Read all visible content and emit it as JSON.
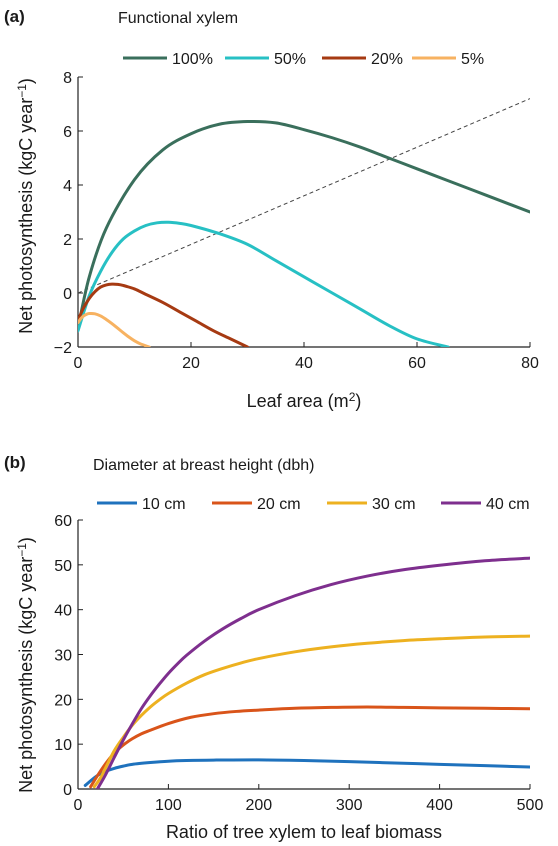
{
  "chart_data": [
    {
      "type": "line",
      "panel": "(a)",
      "legend_title": "Functional xylem",
      "legend_position": "top",
      "xlabel": "Leaf area (m²)",
      "ylabel": "Net photosynthesis (kgC year⁻¹)",
      "xlim": [
        0,
        80
      ],
      "ylim": [
        -2,
        8
      ],
      "xticks": [
        0,
        20,
        40,
        60,
        80
      ],
      "yticks": [
        -2,
        0,
        2,
        4,
        6,
        8
      ],
      "grid": false,
      "series": [
        {
          "name": "100%",
          "color": "#3a6f5c",
          "x": [
            0,
            2,
            5,
            10,
            15,
            20,
            25,
            30,
            35,
            40,
            45,
            50,
            55,
            60,
            65,
            70,
            75,
            80
          ],
          "y": [
            -1.3,
            0.6,
            2.4,
            4.2,
            5.3,
            5.9,
            6.25,
            6.35,
            6.3,
            6.05,
            5.75,
            5.4,
            5.0,
            4.6,
            4.2,
            3.8,
            3.4,
            3.0
          ]
        },
        {
          "name": "50%",
          "color": "#27c0c4",
          "x": [
            0,
            2,
            4,
            6,
            8,
            10,
            12,
            14,
            16,
            18,
            20,
            25,
            30,
            35,
            40,
            45,
            50,
            55,
            60,
            65.5
          ],
          "y": [
            -1.4,
            -0.1,
            0.8,
            1.5,
            2.0,
            2.3,
            2.5,
            2.6,
            2.62,
            2.58,
            2.5,
            2.2,
            1.8,
            1.2,
            0.6,
            0.0,
            -0.6,
            -1.2,
            -1.7,
            -2.0
          ]
        },
        {
          "name": "20%",
          "color": "#a63a12",
          "x": [
            0,
            1,
            2,
            3,
            4,
            5,
            6,
            7,
            8,
            10,
            12,
            15,
            18,
            21,
            24,
            27,
            30
          ],
          "y": [
            -1.0,
            -0.55,
            -0.2,
            0.05,
            0.22,
            0.3,
            0.33,
            0.32,
            0.28,
            0.15,
            -0.05,
            -0.35,
            -0.7,
            -1.05,
            -1.4,
            -1.7,
            -2.0
          ]
        },
        {
          "name": "5%",
          "color": "#f7b261",
          "x": [
            0,
            0.5,
            1,
            1.5,
            2,
            3,
            4,
            5,
            6,
            7,
            8,
            9,
            10,
            11,
            12.6
          ],
          "y": [
            -1.1,
            -0.95,
            -0.85,
            -0.79,
            -0.76,
            -0.77,
            -0.85,
            -0.98,
            -1.13,
            -1.3,
            -1.47,
            -1.63,
            -1.77,
            -1.88,
            -2.0
          ]
        }
      ],
      "reference_line": {
        "style": "dashed",
        "color": "#444444",
        "x": [
          0,
          80
        ],
        "y": [
          0,
          7.2
        ]
      }
    },
    {
      "type": "line",
      "panel": "(b)",
      "legend_title": "Diameter at breast height (dbh)",
      "legend_position": "top",
      "xlabel": "Ratio of tree xylem to leaf biomass",
      "ylabel": "Net photosynthesis (kgC year⁻¹)",
      "xlim": [
        0,
        500
      ],
      "ylim": [
        0,
        60
      ],
      "xticks": [
        0,
        100,
        200,
        300,
        400,
        500
      ],
      "yticks": [
        0,
        10,
        20,
        30,
        40,
        50,
        60
      ],
      "grid": false,
      "series": [
        {
          "name": "10 cm",
          "color": "#1f72bd",
          "x": [
            8,
            20,
            30,
            40,
            50,
            60,
            80,
            100,
            120,
            150,
            200,
            250,
            300,
            350,
            400,
            450,
            500
          ],
          "y": [
            0.8,
            2.8,
            3.9,
            4.6,
            5.1,
            5.5,
            5.9,
            6.2,
            6.35,
            6.45,
            6.5,
            6.35,
            6.1,
            5.8,
            5.5,
            5.2,
            4.9
          ]
        },
        {
          "name": "20 cm",
          "color": "#d9541a",
          "x": [
            14,
            20,
            30,
            40,
            50,
            60,
            70,
            80,
            100,
            125,
            150,
            175,
            200,
            240,
            280,
            320,
            360,
            400,
            450,
            500
          ],
          "y": [
            0.5,
            2.5,
            5.5,
            8.0,
            9.8,
            11.2,
            12.3,
            13.1,
            14.6,
            16.0,
            16.8,
            17.3,
            17.6,
            18.0,
            18.2,
            18.3,
            18.2,
            18.1,
            18.0,
            17.9
          ]
        },
        {
          "name": "30 cm",
          "color": "#edb120",
          "x": [
            18,
            25,
            30,
            40,
            50,
            60,
            70,
            80,
            90,
            100,
            120,
            140,
            160,
            180,
            200,
            240,
            280,
            320,
            360,
            400,
            450,
            500
          ],
          "y": [
            0.5,
            2.5,
            4.5,
            8.5,
            11.5,
            14.2,
            16.4,
            18.3,
            19.9,
            21.3,
            23.6,
            25.5,
            26.9,
            28.1,
            29.1,
            30.6,
            31.7,
            32.5,
            33.1,
            33.5,
            33.9,
            34.1
          ]
        },
        {
          "name": "40 cm",
          "color": "#7e2f8e",
          "x": [
            22,
            30,
            40,
            50,
            60,
            70,
            80,
            90,
            100,
            110,
            120,
            140,
            160,
            180,
            200,
            240,
            280,
            320,
            360,
            400,
            450,
            500
          ],
          "y": [
            0.2,
            3.0,
            7.0,
            10.9,
            14.5,
            17.9,
            20.8,
            23.4,
            25.8,
            27.9,
            29.8,
            33.0,
            35.7,
            38.0,
            40.0,
            43.1,
            45.6,
            47.5,
            48.9,
            49.9,
            50.9,
            51.5
          ]
        }
      ]
    }
  ]
}
